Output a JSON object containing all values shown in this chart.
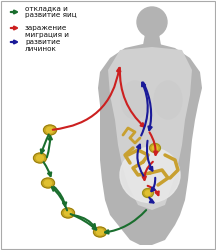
{
  "background_color": "#ffffff",
  "border_color": "#aaaaaa",
  "body_color": "#b3b3b3",
  "body_inner_color": "#d0d0d0",
  "legend": [
    {
      "label": "откладка и\nразвитие яиц",
      "color": "#1a6e2e",
      "lw": 1.6
    },
    {
      "label": "заражение",
      "color": "#cc2020",
      "lw": 1.6
    },
    {
      "label": "миграция и\nразвитие\nличинок",
      "color": "#1a1a99",
      "lw": 1.6
    }
  ],
  "font_size": 5.2,
  "egg_color": "#c8a820",
  "egg_inner_color": "#e0c030",
  "worm_color": "#c8a030",
  "intestine_color": "#e8e8e8",
  "lung_color": "#cccccc"
}
